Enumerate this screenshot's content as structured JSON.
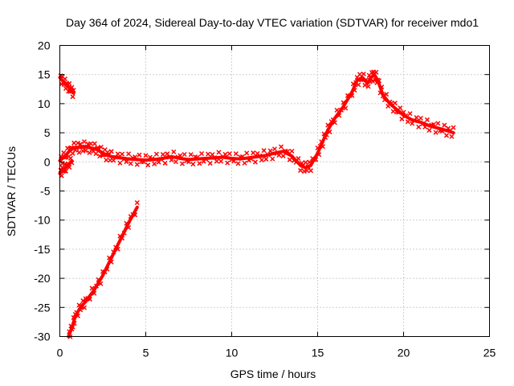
{
  "chart_data": {
    "type": "scatter",
    "title": "Day 364 of 2024, Sidereal Day-to-day VTEC variation (SDTVAR) for receiver mdo1",
    "xlabel": "GPS time / hours",
    "ylabel": "SDTVAR / TECUs",
    "xlim": [
      0,
      25
    ],
    "ylim": [
      -30,
      20
    ],
    "xticks": [
      0,
      5,
      10,
      15,
      20,
      25
    ],
    "yticks": [
      -30,
      -25,
      -20,
      -15,
      -10,
      -5,
      0,
      5,
      10,
      15,
      20
    ],
    "grid": true,
    "series_color": "#ff0000",
    "series": [
      {
        "name": "main",
        "band": 0.9,
        "x": [
          0.0,
          0.3,
          0.6,
          0.9,
          1.2,
          1.5,
          1.8,
          2.1,
          2.4,
          2.7,
          3.0,
          3.5,
          4.0,
          4.5,
          5.0,
          5.5,
          6.0,
          6.5,
          7.0,
          7.5,
          8.0,
          8.5,
          9.0,
          9.5,
          10.0,
          10.5,
          11.0,
          11.5,
          12.0,
          12.5,
          13.0,
          13.5,
          14.0,
          14.3,
          14.6,
          15.0,
          15.3,
          15.6,
          16.0,
          16.5,
          17.0,
          17.3,
          17.6,
          17.9,
          18.1,
          18.3,
          18.5,
          18.8,
          19.2,
          19.6,
          20.0,
          20.5,
          21.0,
          21.5,
          22.0,
          22.5,
          22.9
        ],
        "y": [
          0.2,
          1.0,
          2.0,
          2.5,
          2.5,
          2.6,
          2.4,
          2.2,
          1.7,
          1.2,
          0.9,
          0.7,
          0.5,
          0.4,
          0.3,
          0.4,
          0.6,
          0.9,
          0.6,
          0.4,
          0.5,
          0.6,
          0.7,
          0.8,
          0.6,
          0.5,
          0.7,
          0.9,
          1.1,
          1.5,
          1.8,
          1.0,
          -0.6,
          -1.0,
          -0.6,
          1.5,
          3.5,
          5.5,
          7.5,
          9.5,
          12.0,
          14.0,
          14.5,
          13.5,
          14.5,
          15.0,
          14.0,
          11.5,
          10.0,
          9.0,
          8.0,
          7.2,
          6.8,
          6.2,
          5.8,
          5.4,
          5.0
        ]
      },
      {
        "name": "early-descending",
        "band": 0.8,
        "x": [
          0.0,
          0.2,
          0.4,
          0.6,
          0.8
        ],
        "y": [
          14.5,
          13.8,
          13.2,
          12.5,
          11.8
        ]
      },
      {
        "name": "early-rising",
        "band": 0.7,
        "x": [
          0.0,
          0.2,
          0.4,
          0.7
        ],
        "y": [
          -2.0,
          -1.4,
          -0.8,
          0.2
        ]
      },
      {
        "name": "steep-rising",
        "band": 0.8,
        "x": [
          0.5,
          0.7,
          0.9,
          1.2,
          1.5,
          2.0,
          2.5,
          3.0,
          3.5,
          4.0,
          4.5
        ],
        "y": [
          -30.0,
          -28.5,
          -26.5,
          -25.0,
          -24.0,
          -22.0,
          -19.5,
          -16.5,
          -13.5,
          -10.5,
          -7.8
        ]
      }
    ]
  }
}
